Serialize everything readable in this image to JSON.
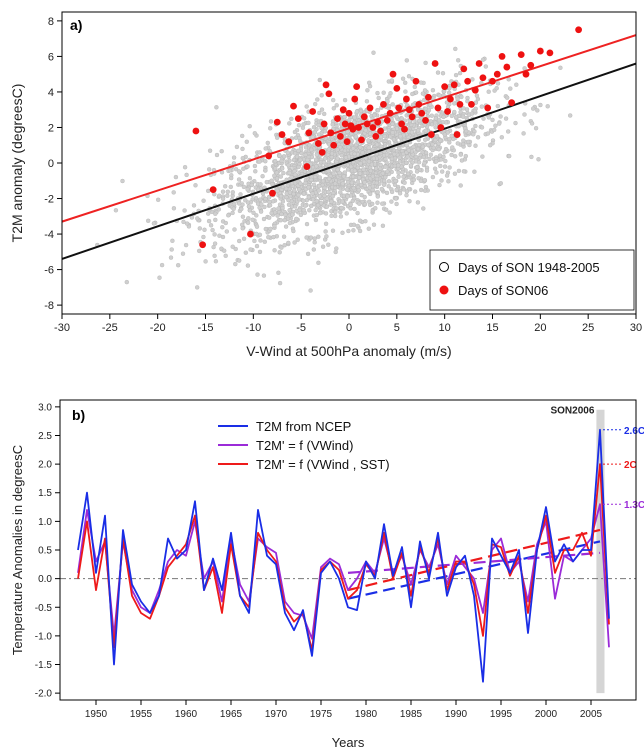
{
  "chart_data": [
    {
      "type": "scatter",
      "panel_label": "a)",
      "title": "",
      "xlabel": "V-Wind at 500hPa anomaly (m/s)",
      "ylabel": "T2M anomaly (degreesC)",
      "xlim": [
        -30,
        30
      ],
      "ylim": [
        -8.5,
        8.5
      ],
      "xticks": [
        -30,
        -25,
        -20,
        -15,
        -10,
        -5,
        0,
        5,
        10,
        15,
        20,
        25,
        30
      ],
      "yticks": [
        -8,
        -6,
        -4,
        -2,
        0,
        2,
        4,
        6,
        8
      ],
      "legend_position": "bottom-right",
      "series": [
        {
          "name": "Days of SON 1948-2005",
          "marker": "open-circle",
          "color": "#c0c0c0",
          "cloud": {
            "count": 2400,
            "x_mean": 0,
            "x_sd": 7,
            "slope": 0.185,
            "intercept": 0,
            "residual_sd": 1.6
          }
        },
        {
          "name": "Days of SON06",
          "marker": "filled-circle",
          "color": "#ee1111",
          "points": [
            [
              -16,
              1.8
            ],
            [
              -15.3,
              -4.6
            ],
            [
              -14.2,
              -1.5
            ],
            [
              -10.3,
              -4.0
            ],
            [
              -8.4,
              0.4
            ],
            [
              -8,
              -1.7
            ],
            [
              -7.5,
              2.3
            ],
            [
              -7,
              1.6
            ],
            [
              -6.3,
              1.2
            ],
            [
              -5.8,
              3.2
            ],
            [
              -5.3,
              2.5
            ],
            [
              -4.4,
              -0.2
            ],
            [
              -4.2,
              1.7
            ],
            [
              -3.8,
              2.9
            ],
            [
              -3.2,
              1.1
            ],
            [
              -2.8,
              0.6
            ],
            [
              -2.6,
              2.2
            ],
            [
              -2.4,
              4.4
            ],
            [
              -2.1,
              3.9
            ],
            [
              -1.9,
              1.7
            ],
            [
              -1.6,
              1.0
            ],
            [
              -1.2,
              2.5
            ],
            [
              -0.9,
              1.5
            ],
            [
              -0.6,
              3.0
            ],
            [
              -0.4,
              2.2
            ],
            [
              -0.2,
              1.2
            ],
            [
              0,
              2.8
            ],
            [
              0.2,
              2.1
            ],
            [
              0.4,
              1.9
            ],
            [
              0.6,
              3.6
            ],
            [
              0.8,
              4.3
            ],
            [
              1,
              2.0
            ],
            [
              1.3,
              1.3
            ],
            [
              1.6,
              2.6
            ],
            [
              1.9,
              2.2
            ],
            [
              2.2,
              3.1
            ],
            [
              2.5,
              2.0
            ],
            [
              2.8,
              1.5
            ],
            [
              3,
              2.3
            ],
            [
              3.3,
              1.8
            ],
            [
              3.6,
              3.3
            ],
            [
              4,
              2.4
            ],
            [
              4.3,
              2.8
            ],
            [
              4.6,
              5.0
            ],
            [
              5,
              4.2
            ],
            [
              5.2,
              3.1
            ],
            [
              5.5,
              2.2
            ],
            [
              5.8,
              1.9
            ],
            [
              6,
              3.6
            ],
            [
              6.3,
              3.0
            ],
            [
              6.6,
              2.6
            ],
            [
              7,
              4.6
            ],
            [
              7.3,
              3.3
            ],
            [
              7.6,
              2.8
            ],
            [
              8,
              2.4
            ],
            [
              8.3,
              3.7
            ],
            [
              8.6,
              1.6
            ],
            [
              9,
              5.6
            ],
            [
              9.3,
              3.1
            ],
            [
              9.6,
              2.0
            ],
            [
              10,
              4.3
            ],
            [
              10.3,
              2.9
            ],
            [
              10.6,
              3.6
            ],
            [
              11,
              4.4
            ],
            [
              11.3,
              1.6
            ],
            [
              11.6,
              3.3
            ],
            [
              12,
              5.3
            ],
            [
              12.4,
              4.6
            ],
            [
              12.8,
              3.3
            ],
            [
              13.2,
              4.1
            ],
            [
              13.6,
              5.6
            ],
            [
              14,
              4.8
            ],
            [
              14.5,
              3.1
            ],
            [
              15,
              4.6
            ],
            [
              15.5,
              5.0
            ],
            [
              16,
              6.0
            ],
            [
              16.5,
              5.4
            ],
            [
              17,
              3.4
            ],
            [
              18,
              6.1
            ],
            [
              18.5,
              5.0
            ],
            [
              19,
              5.5
            ],
            [
              20,
              6.3
            ],
            [
              21,
              6.2
            ],
            [
              24,
              7.5
            ]
          ]
        }
      ],
      "lines": [
        {
          "color": "#111111",
          "x": [
            -30,
            30
          ],
          "y": [
            -5.4,
            5.6
          ]
        },
        {
          "color": "#ee2222",
          "x": [
            -30,
            30
          ],
          "y": [
            -3.3,
            7.2
          ]
        }
      ]
    },
    {
      "type": "line",
      "panel_label": "b)",
      "title": "",
      "xlabel": "Years",
      "ylabel": "Temperature Anomalies in degreesC",
      "xlim": [
        1946,
        2010
      ],
      "ylim": [
        -2.12,
        3.12
      ],
      "xticks": [
        1950,
        1955,
        1960,
        1965,
        1970,
        1975,
        1980,
        1985,
        1990,
        1995,
        2000,
        2005
      ],
      "yticks": [
        -2.0,
        -1.5,
        -1.0,
        -0.5,
        0.0,
        0.5,
        1.0,
        1.5,
        2.0,
        2.5,
        3.0
      ],
      "legend_position": "top-center",
      "x": [
        1948,
        1949,
        1950,
        1951,
        1952,
        1953,
        1954,
        1955,
        1956,
        1957,
        1958,
        1959,
        1960,
        1961,
        1962,
        1963,
        1964,
        1965,
        1966,
        1967,
        1968,
        1969,
        1970,
        1971,
        1972,
        1973,
        1974,
        1975,
        1976,
        1977,
        1978,
        1979,
        1980,
        1981,
        1982,
        1983,
        1984,
        1985,
        1986,
        1987,
        1988,
        1989,
        1990,
        1991,
        1992,
        1993,
        1994,
        1995,
        1996,
        1997,
        1998,
        1999,
        2000,
        2001,
        2002,
        2003,
        2004,
        2005,
        2006,
        2007
      ],
      "series": [
        {
          "name": "T2M from NCEP",
          "color": "#1a2ee6",
          "values": [
            0.5,
            1.5,
            0.1,
            1.1,
            -1.5,
            0.85,
            -0.1,
            -0.4,
            -0.6,
            -0.3,
            0.7,
            0.35,
            0.5,
            1.35,
            -0.2,
            0.35,
            -0.2,
            0.8,
            -0.3,
            -0.6,
            1.2,
            0.4,
            0.25,
            -0.6,
            -0.9,
            -0.55,
            -1.35,
            0.1,
            0.3,
            0.0,
            -0.5,
            -0.55,
            0.3,
            0.0,
            0.95,
            0.05,
            0.55,
            -0.5,
            0.65,
            0.0,
            0.8,
            -0.3,
            0.2,
            0.4,
            -0.3,
            -1.8,
            0.7,
            0.4,
            0.1,
            0.5,
            -0.95,
            0.5,
            1.25,
            0.3,
            0.6,
            0.3,
            0.5,
            0.5,
            2.6,
            -0.7
          ]
        },
        {
          "name": "T2M' = f (VWind)",
          "color": "#9b2bd8",
          "values": [
            0.1,
            1.2,
            0.3,
            0.65,
            -1.0,
            0.65,
            -0.2,
            -0.5,
            -0.6,
            -0.2,
            0.3,
            0.5,
            0.4,
            1.0,
            0.0,
            0.3,
            -0.4,
            0.7,
            -0.1,
            -0.4,
            0.7,
            0.55,
            0.45,
            -0.4,
            -0.6,
            -0.65,
            -1.05,
            0.2,
            0.35,
            0.25,
            -0.2,
            0.0,
            0.3,
            0.1,
            0.7,
            0.1,
            0.4,
            -0.1,
            0.5,
            0.2,
            0.6,
            -0.1,
            0.4,
            0.2,
            0.0,
            -0.6,
            0.5,
            0.7,
            0.1,
            0.3,
            -0.4,
            0.6,
            1.0,
            -0.35,
            0.4,
            0.3,
            0.5,
            0.7,
            1.3,
            -1.2
          ]
        },
        {
          "name": "T2M' = f (VWind , SST)",
          "color": "#ee1a1a",
          "values": [
            0.0,
            1.0,
            -0.2,
            0.7,
            -1.2,
            0.7,
            -0.3,
            -0.6,
            -0.7,
            -0.3,
            0.2,
            0.4,
            0.6,
            1.1,
            -0.2,
            0.2,
            -0.6,
            0.6,
            -0.3,
            -0.5,
            0.8,
            0.5,
            0.3,
            -0.5,
            -0.75,
            -0.6,
            -1.25,
            0.15,
            0.3,
            0.15,
            -0.35,
            -0.2,
            0.25,
            0.05,
            0.8,
            0.0,
            0.45,
            -0.3,
            0.55,
            0.1,
            0.7,
            -0.2,
            0.3,
            0.3,
            -0.1,
            -1.0,
            0.6,
            0.55,
            0.05,
            0.4,
            -0.6,
            0.5,
            1.1,
            0.1,
            0.5,
            0.5,
            0.8,
            0.4,
            2.0,
            -0.8
          ]
        }
      ],
      "trend_lines": [
        {
          "color": "#1a2ee6",
          "x": [
            1978,
            2006
          ],
          "y": [
            -0.35,
            0.65
          ]
        },
        {
          "color": "#9b2bd8",
          "x": [
            1978,
            2006
          ],
          "y": [
            0.1,
            0.45
          ]
        },
        {
          "color": "#ee1a1a",
          "x": [
            1978,
            2006
          ],
          "y": [
            -0.2,
            0.85
          ]
        }
      ],
      "highlight_band": {
        "label": "SON2006",
        "x": [
          2005.6,
          2006.5
        ],
        "color": "#d5d5d5"
      },
      "annotations": [
        {
          "text": "2.6C",
          "x": 2006,
          "y": 2.6,
          "color": "#1a2ee6"
        },
        {
          "text": "2C",
          "x": 2006,
          "y": 2.0,
          "color": "#ee1a1a"
        },
        {
          "text": "1.3C",
          "x": 2006,
          "y": 1.3,
          "color": "#9b2bd8"
        }
      ]
    }
  ]
}
